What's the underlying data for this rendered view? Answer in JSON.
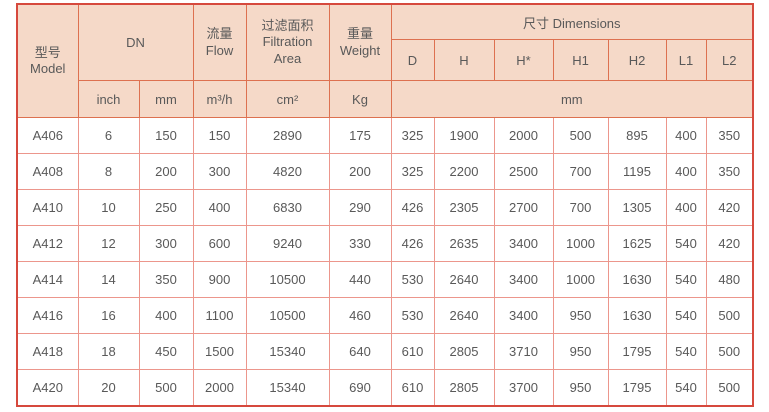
{
  "table": {
    "header": {
      "model_cn": "型号",
      "model_en": "Model",
      "dn": "DN",
      "flow_cn": "流量",
      "flow_en": "Flow",
      "area_cn": "过滤面积",
      "area_en1": "Filtration",
      "area_en2": "Area",
      "weight_cn": "重量",
      "weight_en": "Weight",
      "dimensions": "尺寸 Dimensions",
      "dim_cols": [
        "D",
        "H",
        "H*",
        "H1",
        "H2",
        "L1",
        "L2"
      ],
      "units": {
        "inch": "inch",
        "mm": "mm",
        "flow": "m³/h",
        "area": "cm²",
        "weight": "Kg",
        "dims": "mm"
      }
    },
    "rows": [
      {
        "model": "A406",
        "inch": "6",
        "mm": "150",
        "flow": "150",
        "area": "2890",
        "weight": "175",
        "dims": [
          "325",
          "1900",
          "2000",
          "500",
          "895",
          "400",
          "350"
        ]
      },
      {
        "model": "A408",
        "inch": "8",
        "mm": "200",
        "flow": "300",
        "area": "4820",
        "weight": "200",
        "dims": [
          "325",
          "2200",
          "2500",
          "700",
          "1195",
          "400",
          "350"
        ]
      },
      {
        "model": "A410",
        "inch": "10",
        "mm": "250",
        "flow": "400",
        "area": "6830",
        "weight": "290",
        "dims": [
          "426",
          "2305",
          "2700",
          "700",
          "1305",
          "400",
          "420"
        ]
      },
      {
        "model": "A412",
        "inch": "12",
        "mm": "300",
        "flow": "600",
        "area": "9240",
        "weight": "330",
        "dims": [
          "426",
          "2635",
          "3400",
          "1000",
          "1625",
          "540",
          "420"
        ]
      },
      {
        "model": "A414",
        "inch": "14",
        "mm": "350",
        "flow": "900",
        "area": "10500",
        "weight": "440",
        "dims": [
          "530",
          "2640",
          "3400",
          "1000",
          "1630",
          "540",
          "480"
        ]
      },
      {
        "model": "A416",
        "inch": "16",
        "mm": "400",
        "flow": "1100",
        "area": "10500",
        "weight": "460",
        "dims": [
          "530",
          "2640",
          "3400",
          "950",
          "1630",
          "540",
          "500"
        ]
      },
      {
        "model": "A418",
        "inch": "18",
        "mm": "450",
        "flow": "1500",
        "area": "15340",
        "weight": "640",
        "dims": [
          "610",
          "2805",
          "3710",
          "950",
          "1795",
          "540",
          "500"
        ]
      },
      {
        "model": "A420",
        "inch": "20",
        "mm": "500",
        "flow": "2000",
        "area": "15340",
        "weight": "690",
        "dims": [
          "610",
          "2805",
          "3700",
          "950",
          "1795",
          "540",
          "500"
        ]
      }
    ],
    "colors": {
      "header_bg": "#f5d9c8",
      "header_border": "#dd7150",
      "body_border": "#ec968c",
      "outer_border": "#d6493d",
      "text": "#595959"
    }
  }
}
